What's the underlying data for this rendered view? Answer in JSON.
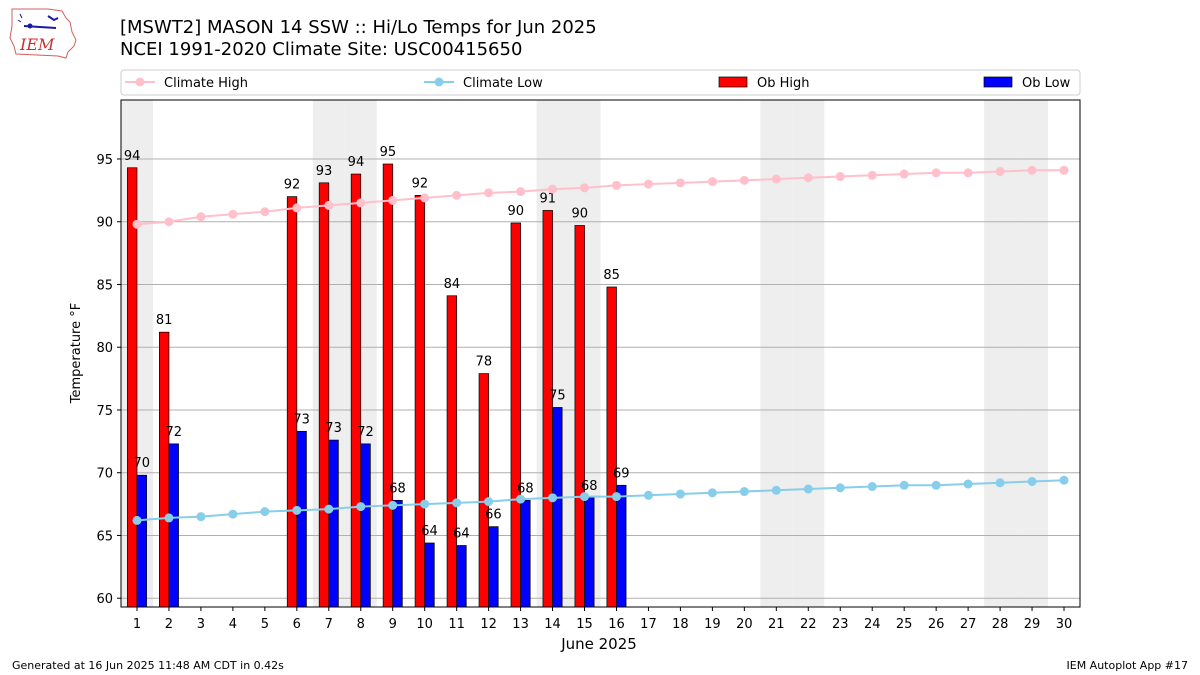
{
  "header": {
    "title_line1": "[MSWT2] MASON 14 SSW :: Hi/Lo Temps for Jun 2025",
    "title_line2": "NCEI 1991-2020 Climate Site: USC00415650",
    "logo_text": "IEM"
  },
  "footer": {
    "generated": "Generated at 16 Jun 2025 11:48 AM CDT in 0.42s",
    "app": "IEM Autoplot App #17"
  },
  "colors": {
    "climate_high": "#ffc0cb",
    "climate_low": "#87ceeb",
    "ob_high": "#ff0000",
    "ob_low": "#0000ff",
    "weekend_shade": "#eeeeee",
    "grid": "#b0b0b0"
  },
  "chart_data": {
    "type": "bar",
    "xlabel": "June 2025",
    "ylabel": "Temperature °F",
    "xlim": [
      0.5,
      30.5
    ],
    "ylim": [
      59.3,
      99.7
    ],
    "yticks": [
      60,
      65,
      70,
      75,
      80,
      85,
      90,
      95
    ],
    "grid": "horizontal",
    "legend": "top",
    "legend_entries": [
      "Climate High",
      "Climate Low",
      "Ob High",
      "Ob Low"
    ],
    "shaded_days": [
      1,
      7,
      8,
      14,
      15,
      21,
      22,
      28,
      29
    ],
    "days": [
      1,
      2,
      3,
      4,
      5,
      6,
      7,
      8,
      9,
      10,
      11,
      12,
      13,
      14,
      15,
      16,
      17,
      18,
      19,
      20,
      21,
      22,
      23,
      24,
      25,
      26,
      27,
      28,
      29,
      30
    ],
    "climate_high": [
      89.8,
      90.0,
      90.4,
      90.6,
      90.8,
      91.1,
      91.3,
      91.5,
      91.7,
      91.9,
      92.1,
      92.3,
      92.4,
      92.6,
      92.7,
      92.9,
      93.0,
      93.1,
      93.2,
      93.3,
      93.4,
      93.5,
      93.6,
      93.7,
      93.8,
      93.9,
      93.9,
      94.0,
      94.1,
      94.1
    ],
    "climate_low": [
      66.2,
      66.4,
      66.5,
      66.7,
      66.9,
      67.0,
      67.1,
      67.3,
      67.4,
      67.5,
      67.6,
      67.7,
      67.9,
      68.0,
      68.1,
      68.1,
      68.2,
      68.3,
      68.4,
      68.5,
      68.6,
      68.7,
      68.8,
      68.9,
      69.0,
      69.0,
      69.1,
      69.2,
      69.3,
      69.4
    ],
    "ob_high": [
      {
        "day": 1,
        "value": 94.3,
        "label": "94"
      },
      {
        "day": 2,
        "value": 81.2,
        "label": "81"
      },
      {
        "day": 6,
        "value": 92.0,
        "label": "92"
      },
      {
        "day": 7,
        "value": 93.1,
        "label": "93"
      },
      {
        "day": 8,
        "value": 93.8,
        "label": "94"
      },
      {
        "day": 9,
        "value": 94.6,
        "label": "95"
      },
      {
        "day": 10,
        "value": 92.1,
        "label": "92"
      },
      {
        "day": 11,
        "value": 84.1,
        "label": "84"
      },
      {
        "day": 12,
        "value": 77.9,
        "label": "78"
      },
      {
        "day": 13,
        "value": 89.9,
        "label": "90"
      },
      {
        "day": 14,
        "value": 90.9,
        "label": "91"
      },
      {
        "day": 15,
        "value": 89.7,
        "label": "90"
      },
      {
        "day": 16,
        "value": 84.8,
        "label": "85"
      }
    ],
    "ob_low": [
      {
        "day": 1,
        "value": 69.8,
        "label": "70"
      },
      {
        "day": 2,
        "value": 72.3,
        "label": "72"
      },
      {
        "day": 6,
        "value": 73.3,
        "label": "73"
      },
      {
        "day": 7,
        "value": 72.6,
        "label": "73"
      },
      {
        "day": 8,
        "value": 72.3,
        "label": "72"
      },
      {
        "day": 9,
        "value": 67.8,
        "label": "68"
      },
      {
        "day": 10,
        "value": 64.4,
        "label": "64"
      },
      {
        "day": 11,
        "value": 64.2,
        "label": "64"
      },
      {
        "day": 12,
        "value": 65.7,
        "label": "66"
      },
      {
        "day": 13,
        "value": 67.8,
        "label": "68"
      },
      {
        "day": 14,
        "value": 75.2,
        "label": "75"
      },
      {
        "day": 15,
        "value": 68.0,
        "label": "68"
      },
      {
        "day": 16,
        "value": 69.0,
        "label": "69"
      }
    ]
  }
}
